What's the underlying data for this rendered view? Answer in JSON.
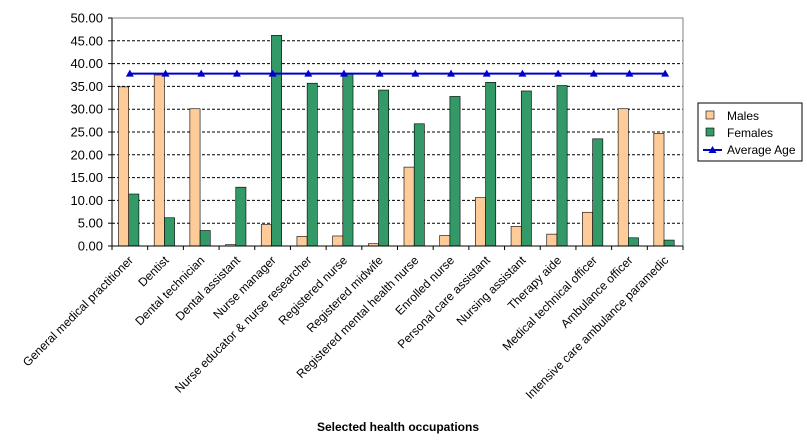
{
  "chart_data": {
    "type": "bar",
    "xlabel": "Selected health occupations",
    "ylabel": "",
    "ylim": [
      0,
      50
    ],
    "yticks": [
      "0.00",
      "5.00",
      "10.00",
      "15.00",
      "20.00",
      "25.00",
      "30.00",
      "35.00",
      "40.00",
      "45.00",
      "50.00"
    ],
    "grid": "horizontal dashed",
    "legend_position": "right",
    "categories": [
      "General medical practitioner",
      "Dentist",
      "Dental technician",
      "Dental assistant",
      "Nurse manager",
      "Nurse educator & nurse researcher",
      "Registered nurse",
      "Registered midwife",
      "Registered mental health nurse",
      "Enrolled nurse",
      "Personal care assistant",
      "Nursing assistant",
      "Therapy aide",
      "Medical technical officer",
      "Ambulance officer",
      "Intensive care ambulance paramedic"
    ],
    "series": [
      {
        "name": "Males",
        "type": "bar",
        "color": "#FFCC99",
        "values": [
          34.9,
          37.5,
          30.1,
          0.3,
          4.7,
          2.1,
          2.2,
          0.5,
          17.3,
          2.3,
          10.6,
          4.3,
          2.6,
          7.4,
          30.1,
          24.7
        ]
      },
      {
        "name": "Females",
        "type": "bar",
        "color": "#339966",
        "values": [
          11.4,
          6.2,
          3.4,
          12.9,
          46.2,
          35.7,
          37.7,
          34.2,
          26.8,
          32.8,
          35.9,
          34.0,
          35.2,
          23.5,
          1.8,
          1.3
        ]
      },
      {
        "name": "Average Age",
        "type": "line",
        "color": "#0000CC",
        "marker": "triangle",
        "values": [
          37.8,
          37.8,
          37.8,
          37.8,
          37.8,
          37.8,
          37.8,
          37.8,
          37.8,
          37.8,
          37.8,
          37.8,
          37.8,
          37.8,
          37.8,
          37.8
        ]
      }
    ]
  }
}
